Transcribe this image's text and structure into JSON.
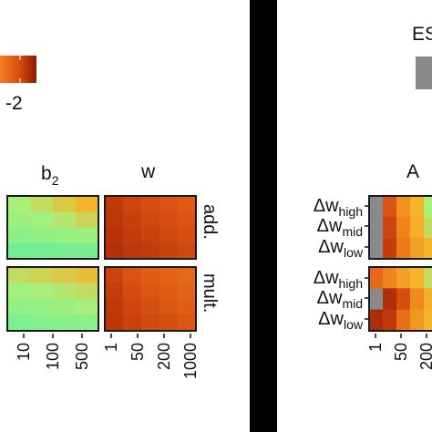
{
  "colors": {
    "black_bar": "#000000",
    "panel_border": "#1a1a1a",
    "legend_dark": "#8b1a06",
    "legend_mid": "#d9480f",
    "legend_light": "#f57c1f",
    "grey_cell": "#8a8a8a"
  },
  "left_legend": {
    "tick_label": "-2"
  },
  "right_legend": {
    "title_fragment": "ES"
  },
  "chart_data": [
    {
      "type": "heatmap",
      "facet_columns": [
        "b",
        "w"
      ],
      "facet_column_subscripts": [
        "2",
        ""
      ],
      "facet_rows": [
        "add.",
        "mult."
      ],
      "x_tick_labels_b2": [
        "10",
        "100",
        "500"
      ],
      "x_tick_labels_w": [
        "1",
        "50",
        "200",
        "1000"
      ],
      "panels": [
        {
          "column": "b2",
          "row": "add.",
          "grid": [
            [
              0.78,
              0.76,
              0.74,
              0.72
            ],
            [
              0.8,
              0.79,
              0.77,
              0.75
            ],
            [
              0.83,
              0.82,
              0.81,
              0.8
            ],
            [
              0.9,
              0.89,
              0.88,
              0.87
            ]
          ]
        },
        {
          "column": "b2",
          "row": "mult.",
          "grid": [
            [
              0.76,
              0.75,
              0.74,
              0.73
            ],
            [
              0.79,
              0.78,
              0.77,
              0.76
            ],
            [
              0.82,
              0.81,
              0.8,
              0.79
            ],
            [
              0.86,
              0.85,
              0.84,
              0.83
            ]
          ]
        },
        {
          "column": "w",
          "row": "add.",
          "grid": [
            [
              0.3,
              0.36,
              0.4,
              0.42,
              0.45
            ],
            [
              0.28,
              0.33,
              0.37,
              0.4,
              0.42
            ],
            [
              0.25,
              0.31,
              0.34,
              0.37,
              0.4
            ],
            [
              0.22,
              0.28,
              0.31,
              0.34,
              0.37
            ]
          ]
        },
        {
          "column": "w",
          "row": "mult.",
          "grid": [
            [
              0.35,
              0.42,
              0.46,
              0.48,
              0.5
            ],
            [
              0.32,
              0.39,
              0.43,
              0.46,
              0.48
            ],
            [
              0.3,
              0.36,
              0.4,
              0.43,
              0.46
            ],
            [
              0.27,
              0.34,
              0.37,
              0.4,
              0.43
            ]
          ]
        }
      ]
    },
    {
      "type": "heatmap",
      "facet_columns": [
        "A"
      ],
      "row_labels": [
        {
          "base": "Δw",
          "sub": "high"
        },
        {
          "base": "Δw",
          "sub": "mid"
        },
        {
          "base": "Δw",
          "sub": "low"
        },
        {
          "base": "Δw",
          "sub": "high"
        },
        {
          "base": "Δw",
          "sub": "mid"
        },
        {
          "base": "Δw",
          "sub": "low"
        }
      ],
      "x_tick_labels": [
        "1",
        "50",
        "200"
      ],
      "panels": [
        {
          "group": 1,
          "grid": [
            [
              -1,
              0.42,
              0.62,
              0.72,
              0.78,
              0.8
            ],
            [
              -1,
              0.36,
              0.58,
              0.7,
              0.76,
              0.78
            ],
            [
              -1,
              0.32,
              0.55,
              0.66,
              0.72,
              0.76
            ]
          ]
        },
        {
          "group": 2,
          "grid": [
            [
              0.5,
              0.58,
              0.66,
              0.72,
              0.76,
              0.78
            ],
            [
              -1,
              0.2,
              0.4,
              0.6,
              0.7,
              0.76
            ],
            [
              0.18,
              0.3,
              0.52,
              0.64,
              0.72,
              0.76
            ]
          ]
        }
      ]
    }
  ]
}
